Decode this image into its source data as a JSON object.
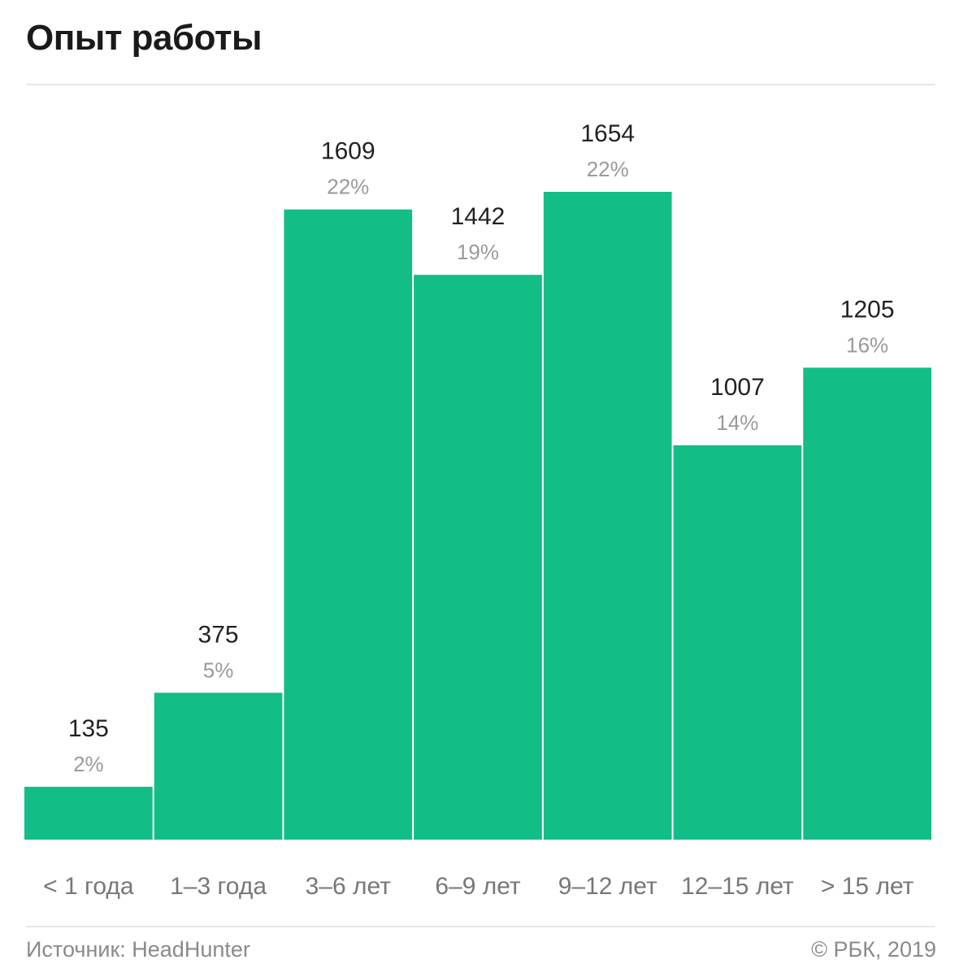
{
  "chart_data": {
    "type": "bar",
    "title": "Опыт работы",
    "categories": [
      "< 1 года",
      "1–3 года",
      "3–6 лет",
      "6–9 лет",
      "9–12 лет",
      "12–15 лет",
      "> 15 лет"
    ],
    "values": [
      135,
      375,
      1609,
      1442,
      1654,
      1007,
      1205
    ],
    "percent_labels": [
      "2%",
      "5%",
      "22%",
      "19%",
      "22%",
      "14%",
      "16%"
    ],
    "ylim": [
      0,
      1654
    ],
    "grid": false,
    "legend": "none",
    "bar_color": "#13bd88"
  },
  "footer": {
    "source": "Источник: HeadHunter",
    "copyright": "© РБК, 2019"
  },
  "colors": {
    "bar": "#13bd88",
    "value_text": "#222222",
    "percent_text": "#9a9a9a",
    "category_text": "#777777",
    "rule": "#e6e6e6"
  }
}
